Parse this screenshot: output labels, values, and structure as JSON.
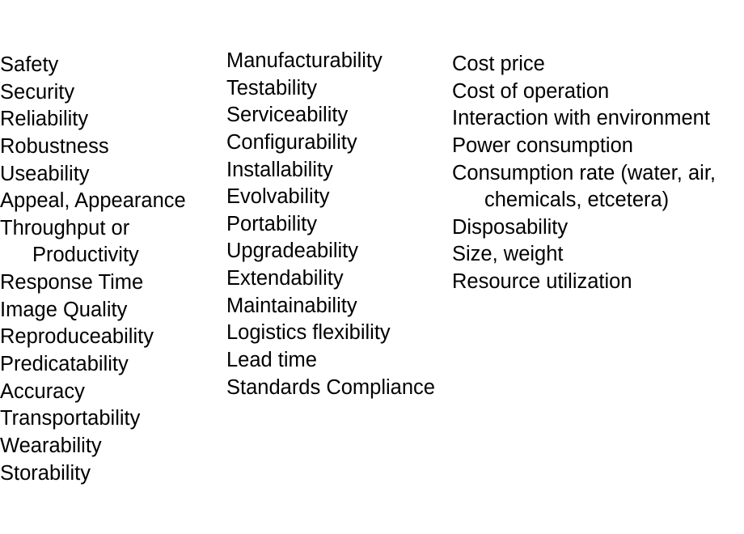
{
  "columns": [
    {
      "items": [
        [
          "Safety"
        ],
        [
          "Security"
        ],
        [
          "Reliability"
        ],
        [
          "Robustness"
        ],
        [
          "Useability"
        ],
        [
          "Appeal, Appearance"
        ],
        [
          "Throughput or",
          "Productivity"
        ],
        [
          "Response Time"
        ],
        [
          "Image Quality"
        ],
        [
          "Reproduceability"
        ],
        [
          "Predicatability"
        ],
        [
          "Accuracy"
        ],
        [
          "Transportability"
        ],
        [
          "Wearability"
        ],
        [
          "Storability"
        ]
      ]
    },
    {
      "items": [
        [
          "Manufacturability"
        ],
        [
          "Testability"
        ],
        [
          "Serviceability"
        ],
        [
          "Configurability"
        ],
        [
          "Installability"
        ],
        [
          "Evolvability"
        ],
        [
          "Portability"
        ],
        [
          "Upgradeability"
        ],
        [
          "Extendability"
        ],
        [
          "Maintainability"
        ],
        [
          "Logistics flexibility"
        ],
        [
          "Lead time"
        ],
        [
          "Standards Compliance"
        ]
      ]
    },
    {
      "items": [
        [
          "Cost price"
        ],
        [
          "Cost of operation"
        ],
        [
          "Interaction with environment"
        ],
        [
          "Power consumption"
        ],
        [
          "Consumption rate (water, air,",
          "chemicals, etcetera)"
        ],
        [
          "Disposability"
        ],
        [
          "Size, weight"
        ],
        [
          "Resource utilization"
        ]
      ]
    }
  ]
}
